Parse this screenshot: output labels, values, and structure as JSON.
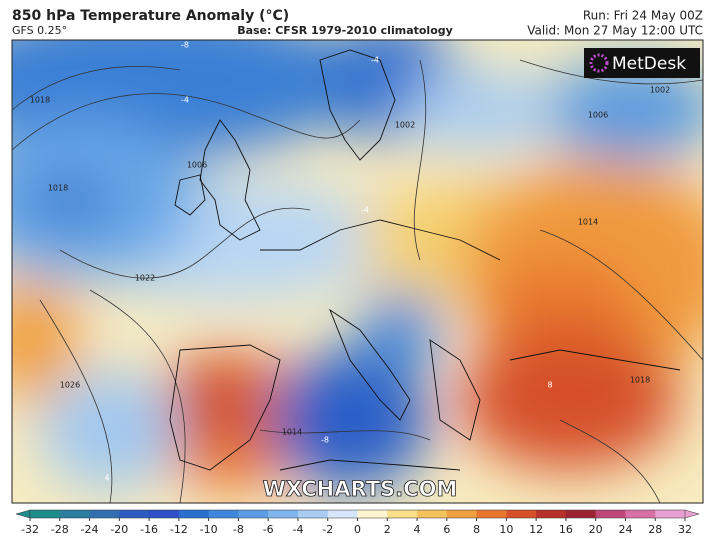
{
  "header": {
    "title": "850 hPa Temperature Anomaly (°C)",
    "model": "GFS 0.25°",
    "base": "Base: CFSR 1979-2010 climatology",
    "run": "Run: Fri 24 May 00Z",
    "valid": "Valid: Mon 27 May 12:00 UTC"
  },
  "logo": "MetDesk",
  "watermark": "WXCHARTS.COM",
  "map": {
    "labels": [
      "1018",
      "1018",
      "1006",
      "1022",
      "1026",
      "1014",
      "1002",
      "1006",
      "1014",
      "1018",
      "1002",
      "-8",
      "-4",
      "-4",
      "-4",
      "-8",
      "8",
      "4"
    ]
  },
  "colorbar": {
    "ticks": [
      -32,
      -28,
      -24,
      -20,
      -16,
      -12,
      -10,
      -8,
      -6,
      -4,
      -2,
      0,
      2,
      4,
      6,
      8,
      10,
      12,
      16,
      20,
      24,
      28,
      32
    ],
    "colors": [
      "#1f8c8c",
      "#2a7f9e",
      "#3070b0",
      "#2c5cc0",
      "#2f50c8",
      "#2b6fd0",
      "#3f86dc",
      "#5c9ce4",
      "#80b4ec",
      "#a8ccf2",
      "#d6e6f8",
      "#fff6d0",
      "#f8e08a",
      "#f4c25c",
      "#f0a040",
      "#e8762e",
      "#d8502a",
      "#b8302a",
      "#9c2430",
      "#c04878",
      "#d870a8",
      "#e8a0d0"
    ]
  }
}
